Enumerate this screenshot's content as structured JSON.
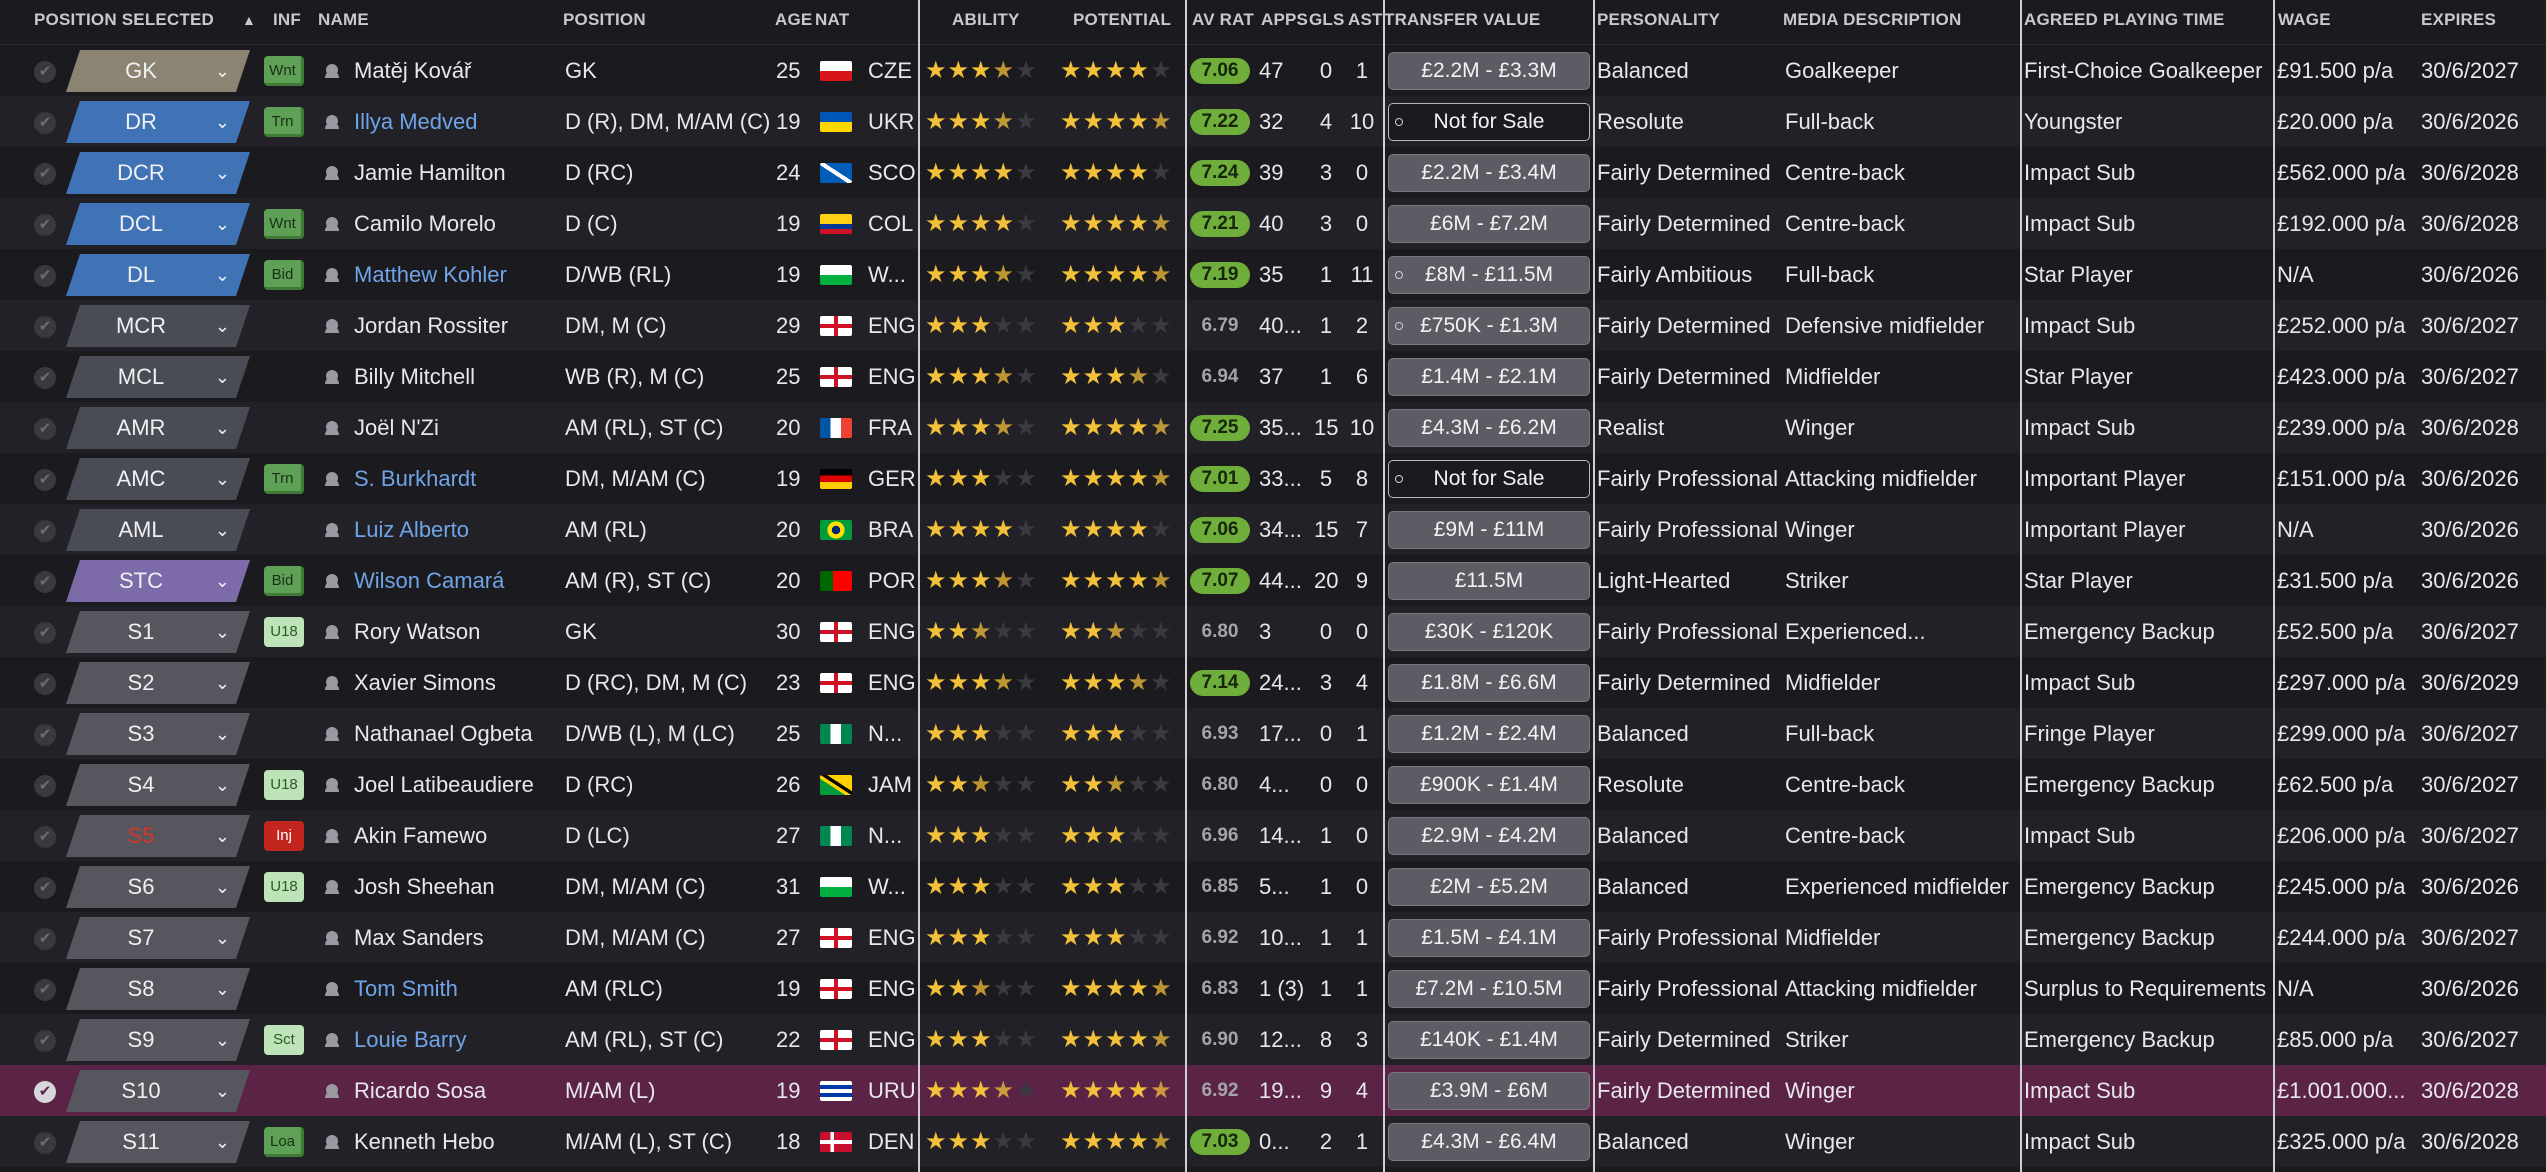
{
  "headers": {
    "position_selected": "POSITION SELECTED",
    "inf": "INF",
    "name": "NAME",
    "position": "POSITION",
    "age": "AGE",
    "nat": "NAT",
    "ability": "ABILITY",
    "potential": "POTENTIAL",
    "av_rat": "AV RAT",
    "apps": "APPS",
    "gls": "GLS",
    "ast": "AST",
    "transfer_value": "TRANSFER VALUE",
    "personality": "PERSONALITY",
    "media_description": "MEDIA DESCRIPTION",
    "agreed_playing_time": "AGREED PLAYING TIME",
    "wage": "WAGE",
    "expires": "EXPIRES"
  },
  "icons": {
    "sort": "sort-ascending-icon",
    "checkbox": "check-circle-icon",
    "dropdown": "chevron-down-icon",
    "player": "person-icon",
    "transfer_status": "circle-icon"
  },
  "colors": {
    "background": "#1b1a1f",
    "gk": "#8b8472",
    "defence": "#3f73b5",
    "attack": "#7d6aa8",
    "substitute": "#55565e",
    "selected_row": "#5b2447",
    "rating_high": "#6fae3b",
    "star": "#f3c03a",
    "link": "#6fa4e6"
  },
  "rows": [
    {
      "slot": "GK",
      "slot_type": "gk",
      "inf": "Wnt",
      "inf_style": "green",
      "name": "Matěj Kovář",
      "link": false,
      "position": "GK",
      "age": "25",
      "flag": "cze",
      "nat": "CZE",
      "ability": 3.5,
      "potential": 4,
      "pot_white": false,
      "av_rat": "7.06",
      "rat_hi": true,
      "apps": "47",
      "gls": "0",
      "ast": "1",
      "tv": "£2.2M - £3.3M",
      "tv_nfs": false,
      "tv_dot": false,
      "personality": "Balanced",
      "media": "Goalkeeper",
      "playing_time": "First-Choice Goalkeeper",
      "wage": "£91.500 p/a",
      "expires": "30/6/2027",
      "selected": false
    },
    {
      "slot": "DR",
      "slot_type": "def",
      "inf": "Trn",
      "inf_style": "green",
      "name": "Illya Medved",
      "link": true,
      "position": "D (R), DM, M/AM (C)",
      "age": "19",
      "flag": "ukr",
      "nat": "UKR",
      "ability": 3.5,
      "potential": 4.5,
      "pot_white": true,
      "av_rat": "7.22",
      "rat_hi": true,
      "apps": "32",
      "gls": "4",
      "ast": "10",
      "tv": "Not for Sale",
      "tv_nfs": true,
      "tv_dot": true,
      "personality": "Resolute",
      "media": "Full-back",
      "playing_time": "Youngster",
      "wage": "£20.000 p/a",
      "expires": "30/6/2026",
      "selected": false
    },
    {
      "slot": "DCR",
      "slot_type": "def",
      "inf": "",
      "inf_style": "",
      "name": "Jamie Hamilton",
      "link": false,
      "position": "D (RC)",
      "age": "24",
      "flag": "sco",
      "nat": "SCO",
      "ability": 4,
      "potential": 4,
      "pot_white": false,
      "av_rat": "7.24",
      "rat_hi": true,
      "apps": "39",
      "gls": "3",
      "ast": "0",
      "tv": "£2.2M - £3.4M",
      "tv_nfs": false,
      "tv_dot": false,
      "personality": "Fairly Determined",
      "media": "Centre-back",
      "playing_time": "Impact Sub",
      "wage": "£562.000 p/a",
      "expires": "30/6/2028",
      "selected": false
    },
    {
      "slot": "DCL",
      "slot_type": "def",
      "inf": "Wnt",
      "inf_style": "green",
      "name": "Camilo Morelo",
      "link": false,
      "position": "D (C)",
      "age": "19",
      "flag": "col",
      "nat": "COL",
      "ability": 4,
      "potential": 4.5,
      "pot_white": true,
      "av_rat": "7.21",
      "rat_hi": true,
      "apps": "40",
      "gls": "3",
      "ast": "0",
      "tv": "£6M - £7.2M",
      "tv_nfs": false,
      "tv_dot": false,
      "personality": "Fairly Determined",
      "media": "Centre-back",
      "playing_time": "Impact Sub",
      "wage": "£192.000 p/a",
      "expires": "30/6/2028",
      "selected": false
    },
    {
      "slot": "DL",
      "slot_type": "def",
      "inf": "Bid",
      "inf_style": "green",
      "name": "Matthew Kohler",
      "link": true,
      "position": "D/WB (RL)",
      "age": "19",
      "flag": "wal",
      "nat": "W...",
      "ability": 3.5,
      "potential": 4.5,
      "pot_white": true,
      "av_rat": "7.19",
      "rat_hi": true,
      "apps": "35",
      "gls": "1",
      "ast": "11",
      "tv": "£8M - £11.5M",
      "tv_nfs": false,
      "tv_dot": true,
      "personality": "Fairly Ambitious",
      "media": "Full-back",
      "playing_time": "Star Player",
      "wage": "N/A",
      "expires": "30/6/2026",
      "selected": false
    },
    {
      "slot": "MCR",
      "slot_type": "mid",
      "inf": "",
      "inf_style": "",
      "name": "Jordan Rossiter",
      "link": false,
      "position": "DM, M (C)",
      "age": "29",
      "flag": "eng",
      "nat": "ENG",
      "ability": 3,
      "potential": 3,
      "pot_white": false,
      "av_rat": "6.79",
      "rat_hi": false,
      "apps": "40...",
      "gls": "1",
      "ast": "2",
      "tv": "£750K - £1.3M",
      "tv_nfs": false,
      "tv_dot": true,
      "personality": "Fairly Determined",
      "media": "Defensive midfielder",
      "playing_time": "Impact Sub",
      "wage": "£252.000 p/a",
      "expires": "30/6/2027",
      "selected": false
    },
    {
      "slot": "MCL",
      "slot_type": "mid",
      "inf": "",
      "inf_style": "",
      "name": "Billy Mitchell",
      "link": false,
      "position": "WB (R), M (C)",
      "age": "25",
      "flag": "eng",
      "nat": "ENG",
      "ability": 3.5,
      "potential": 3.5,
      "pot_white": false,
      "av_rat": "6.94",
      "rat_hi": false,
      "apps": "37",
      "gls": "1",
      "ast": "6",
      "tv": "£1.4M - £2.1M",
      "tv_nfs": false,
      "tv_dot": false,
      "personality": "Fairly Determined",
      "media": "Midfielder",
      "playing_time": "Star Player",
      "wage": "£423.000 p/a",
      "expires": "30/6/2027",
      "selected": false
    },
    {
      "slot": "AMR",
      "slot_type": "mid",
      "inf": "",
      "inf_style": "",
      "name": "Joël N'Zi",
      "link": false,
      "position": "AM (RL), ST (C)",
      "age": "20",
      "flag": "fra",
      "nat": "FRA",
      "ability": 3.5,
      "potential": 4.5,
      "pot_white": true,
      "av_rat": "7.25",
      "rat_hi": true,
      "apps": "35...",
      "gls": "15",
      "ast": "10",
      "tv": "£4.3M - £6.2M",
      "tv_nfs": false,
      "tv_dot": false,
      "personality": "Realist",
      "media": "Winger",
      "playing_time": "Impact Sub",
      "wage": "£239.000 p/a",
      "expires": "30/6/2028",
      "selected": false
    },
    {
      "slot": "AMC",
      "slot_type": "mid",
      "inf": "Trn",
      "inf_style": "green",
      "name": "S. Burkhardt",
      "link": true,
      "position": "DM, M/AM (C)",
      "age": "19",
      "flag": "ger",
      "nat": "GER",
      "ability": 3,
      "potential": 4.5,
      "pot_white": true,
      "av_rat": "7.01",
      "rat_hi": true,
      "apps": "33...",
      "gls": "5",
      "ast": "8",
      "tv": "Not for Sale",
      "tv_nfs": true,
      "tv_dot": true,
      "personality": "Fairly Professional",
      "media": "Attacking midfielder",
      "playing_time": "Important Player",
      "wage": "£151.000 p/a",
      "expires": "30/6/2026",
      "selected": false
    },
    {
      "slot": "AML",
      "slot_type": "mid",
      "inf": "",
      "inf_style": "",
      "name": "Luiz Alberto",
      "link": true,
      "position": "AM (RL)",
      "age": "20",
      "flag": "bra",
      "nat": "BRA",
      "ability": 4,
      "potential": 4,
      "pot_white": false,
      "av_rat": "7.06",
      "rat_hi": true,
      "apps": "34...",
      "gls": "15",
      "ast": "7",
      "tv": "£9M - £11M",
      "tv_nfs": false,
      "tv_dot": false,
      "personality": "Fairly Professional",
      "media": "Winger",
      "playing_time": "Important Player",
      "wage": "N/A",
      "expires": "30/6/2026",
      "selected": false
    },
    {
      "slot": "STC",
      "slot_type": "att",
      "inf": "Bid",
      "inf_style": "green",
      "name": "Wilson Camará",
      "link": true,
      "position": "AM (R), ST (C)",
      "age": "20",
      "flag": "por",
      "nat": "POR",
      "ability": 3.5,
      "potential": 4.5,
      "pot_white": true,
      "av_rat": "7.07",
      "rat_hi": true,
      "apps": "44...",
      "gls": "20",
      "ast": "9",
      "tv": "£11.5M",
      "tv_nfs": false,
      "tv_dot": false,
      "personality": "Light-Hearted",
      "media": "Striker",
      "playing_time": "Star Player",
      "wage": "£31.500 p/a",
      "expires": "30/6/2026",
      "selected": false
    },
    {
      "slot": "S1",
      "slot_type": "sub",
      "inf": "U18",
      "inf_style": "lgreen",
      "name": "Rory Watson",
      "link": false,
      "position": "GK",
      "age": "30",
      "flag": "eng",
      "nat": "ENG",
      "ability": 2.5,
      "potential": 2.5,
      "pot_white": false,
      "av_rat": "6.80",
      "rat_hi": false,
      "apps": "3",
      "gls": "0",
      "ast": "0",
      "tv": "£30K - £120K",
      "tv_nfs": false,
      "tv_dot": false,
      "personality": "Fairly Professional",
      "media": "Experienced...",
      "playing_time": "Emergency Backup",
      "wage": "£52.500 p/a",
      "expires": "30/6/2027",
      "selected": false
    },
    {
      "slot": "S2",
      "slot_type": "sub",
      "inf": "",
      "inf_style": "",
      "name": "Xavier Simons",
      "link": false,
      "position": "D (RC), DM, M (C)",
      "age": "23",
      "flag": "eng",
      "nat": "ENG",
      "ability": 3.5,
      "potential": 3.5,
      "pot_white": false,
      "av_rat": "7.14",
      "rat_hi": true,
      "apps": "24...",
      "gls": "3",
      "ast": "4",
      "tv": "£1.8M - £6.6M",
      "tv_nfs": false,
      "tv_dot": false,
      "personality": "Fairly Determined",
      "media": "Midfielder",
      "playing_time": "Impact Sub",
      "wage": "£297.000 p/a",
      "expires": "30/6/2029",
      "selected": false
    },
    {
      "slot": "S3",
      "slot_type": "sub",
      "inf": "",
      "inf_style": "",
      "name": "Nathanael Ogbeta",
      "link": false,
      "position": "D/WB (L), M (LC)",
      "age": "25",
      "flag": "nga",
      "nat": "N...",
      "ability": 3,
      "potential": 3,
      "pot_white": false,
      "av_rat": "6.93",
      "rat_hi": false,
      "apps": "17...",
      "gls": "0",
      "ast": "1",
      "tv": "£1.2M - £2.4M",
      "tv_nfs": false,
      "tv_dot": false,
      "personality": "Balanced",
      "media": "Full-back",
      "playing_time": "Fringe Player",
      "wage": "£299.000 p/a",
      "expires": "30/6/2027",
      "selected": false
    },
    {
      "slot": "S4",
      "slot_type": "sub",
      "inf": "U18",
      "inf_style": "lgreen",
      "name": "Joel Latibeaudiere",
      "link": false,
      "position": "D (RC)",
      "age": "26",
      "flag": "jam",
      "nat": "JAM",
      "ability": 2.5,
      "potential": 2.5,
      "pot_white": false,
      "av_rat": "6.80",
      "rat_hi": false,
      "apps": "4...",
      "gls": "0",
      "ast": "0",
      "tv": "£900K - £1.4M",
      "tv_nfs": false,
      "tv_dot": false,
      "personality": "Resolute",
      "media": "Centre-back",
      "playing_time": "Emergency Backup",
      "wage": "£62.500 p/a",
      "expires": "30/6/2027",
      "selected": false
    },
    {
      "slot": "S5",
      "slot_type": "sub inj",
      "inf": "Inj",
      "inf_style": "red",
      "name": "Akin Famewo",
      "link": false,
      "position": "D (LC)",
      "age": "27",
      "flag": "nga",
      "nat": "N...",
      "ability": 3,
      "potential": 3,
      "pot_white": false,
      "av_rat": "6.96",
      "rat_hi": false,
      "apps": "14...",
      "gls": "1",
      "ast": "0",
      "tv": "£2.9M - £4.2M",
      "tv_nfs": false,
      "tv_dot": false,
      "personality": "Balanced",
      "media": "Centre-back",
      "playing_time": "Impact Sub",
      "wage": "£206.000 p/a",
      "expires": "30/6/2027",
      "selected": false
    },
    {
      "slot": "S6",
      "slot_type": "sub",
      "inf": "U18",
      "inf_style": "lgreen",
      "name": "Josh Sheehan",
      "link": false,
      "position": "DM, M/AM (C)",
      "age": "31",
      "flag": "wal",
      "nat": "W...",
      "ability": 3,
      "potential": 3,
      "pot_white": false,
      "av_rat": "6.85",
      "rat_hi": false,
      "apps": "5...",
      "gls": "1",
      "ast": "0",
      "tv": "£2M - £5.2M",
      "tv_nfs": false,
      "tv_dot": false,
      "personality": "Balanced",
      "media": "Experienced midfielder",
      "playing_time": "Emergency Backup",
      "wage": "£245.000 p/a",
      "expires": "30/6/2026",
      "selected": false
    },
    {
      "slot": "S7",
      "slot_type": "sub",
      "inf": "",
      "inf_style": "",
      "name": "Max Sanders",
      "link": false,
      "position": "DM, M/AM (C)",
      "age": "27",
      "flag": "eng",
      "nat": "ENG",
      "ability": 3,
      "potential": 3,
      "pot_white": false,
      "av_rat": "6.92",
      "rat_hi": false,
      "apps": "10...",
      "gls": "1",
      "ast": "1",
      "tv": "£1.5M - £4.1M",
      "tv_nfs": false,
      "tv_dot": false,
      "personality": "Fairly Professional",
      "media": "Midfielder",
      "playing_time": "Emergency Backup",
      "wage": "£244.000 p/a",
      "expires": "30/6/2027",
      "selected": false
    },
    {
      "slot": "S8",
      "slot_type": "sub",
      "inf": "",
      "inf_style": "",
      "name": "Tom Smith",
      "link": true,
      "position": "AM (RLC)",
      "age": "19",
      "flag": "eng",
      "nat": "ENG",
      "ability": 2.5,
      "potential": 4.5,
      "pot_white": true,
      "av_rat": "6.83",
      "rat_hi": false,
      "apps": "1 (3)",
      "gls": "1",
      "ast": "1",
      "tv": "£7.2M - £10.5M",
      "tv_nfs": false,
      "tv_dot": false,
      "personality": "Fairly Professional",
      "media": "Attacking midfielder",
      "playing_time": "Surplus to Requirements",
      "wage": "N/A",
      "expires": "30/6/2026",
      "selected": false
    },
    {
      "slot": "S9",
      "slot_type": "sub",
      "inf": "Sct",
      "inf_style": "lgreen",
      "name": "Louie Barry",
      "link": true,
      "position": "AM (RL), ST (C)",
      "age": "22",
      "flag": "eng",
      "nat": "ENG",
      "ability": 3,
      "potential": 4.5,
      "pot_white": false,
      "av_rat": "6.90",
      "rat_hi": false,
      "apps": "12...",
      "gls": "8",
      "ast": "3",
      "tv": "£140K - £1.4M",
      "tv_nfs": false,
      "tv_dot": false,
      "personality": "Fairly Determined",
      "media": "Striker",
      "playing_time": "Emergency Backup",
      "wage": "£85.000 p/a",
      "expires": "30/6/2027",
      "selected": false
    },
    {
      "slot": "S10",
      "slot_type": "sub",
      "inf": "",
      "inf_style": "",
      "name": "Ricardo Sosa",
      "link": false,
      "position": "M/AM (L)",
      "age": "19",
      "flag": "uru",
      "nat": "URU",
      "ability": 3.5,
      "potential": 4.5,
      "pot_white": true,
      "av_rat": "6.92",
      "rat_hi": false,
      "apps": "19...",
      "gls": "9",
      "ast": "4",
      "tv": "£3.9M - £6M",
      "tv_nfs": false,
      "tv_dot": false,
      "personality": "Fairly Determined",
      "media": "Winger",
      "playing_time": "Impact Sub",
      "wage": "£1.001.000...",
      "expires": "30/6/2028",
      "selected": true
    },
    {
      "slot": "S11",
      "slot_type": "sub",
      "inf": "Loa",
      "inf_style": "green",
      "name": "Kenneth Hebo",
      "link": false,
      "position": "M/AM (L), ST (C)",
      "age": "18",
      "flag": "den",
      "nat": "DEN",
      "ability": 3,
      "potential": 4.5,
      "pot_white": true,
      "av_rat": "7.03",
      "rat_hi": true,
      "apps": "0...",
      "gls": "2",
      "ast": "1",
      "tv": "£4.3M - £6.4M",
      "tv_nfs": false,
      "tv_dot": false,
      "personality": "Balanced",
      "media": "Winger",
      "playing_time": "Impact Sub",
      "wage": "£325.000 p/a",
      "expires": "30/6/2028",
      "selected": false
    }
  ]
}
